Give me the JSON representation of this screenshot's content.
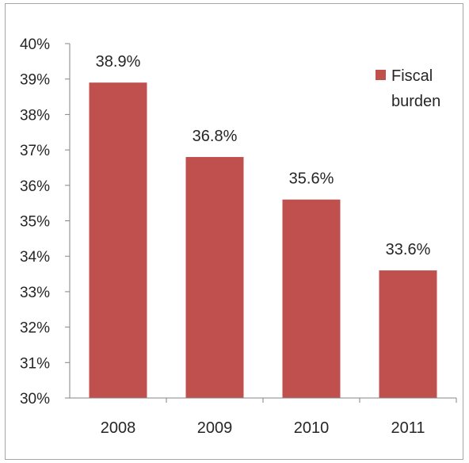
{
  "chart_data": {
    "type": "bar",
    "categories": [
      "2008",
      "2009",
      "2010",
      "2011"
    ],
    "series": [
      {
        "name": "Fiscal burden",
        "values": [
          38.9,
          36.8,
          35.6,
          33.6
        ],
        "color": "#c0504d"
      }
    ],
    "data_labels": [
      "38.9%",
      "36.8%",
      "35.6%",
      "33.6%"
    ],
    "y_ticks": [
      "30%",
      "31%",
      "32%",
      "33%",
      "34%",
      "35%",
      "36%",
      "37%",
      "38%",
      "39%",
      "40%"
    ],
    "ylim": [
      30,
      40
    ],
    "title": "",
    "xlabel": "",
    "ylabel": "",
    "grid": false,
    "legend": {
      "position": "top-right",
      "lines": [
        "Fiscal",
        "burden"
      ]
    }
  }
}
